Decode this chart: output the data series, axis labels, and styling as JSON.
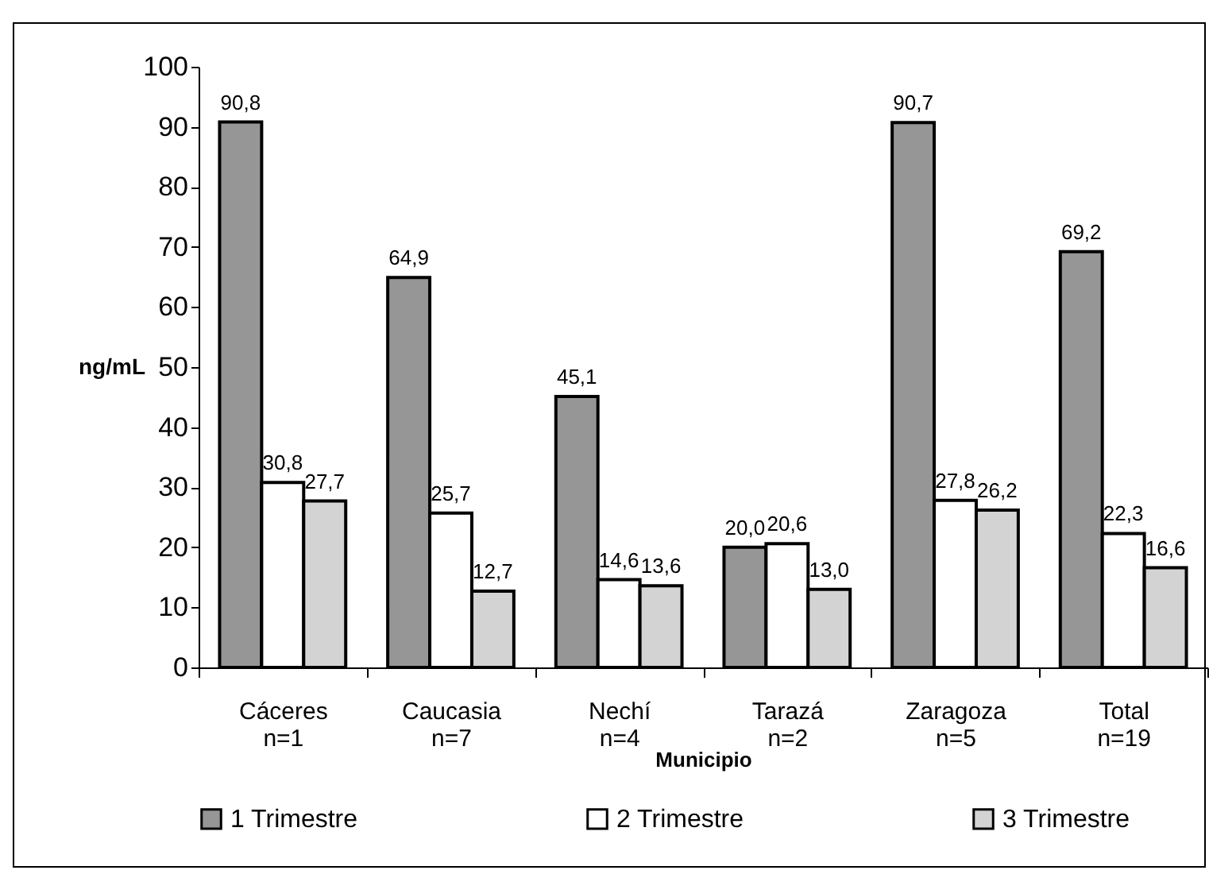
{
  "chart_data": {
    "type": "bar",
    "xlabel": "Municipio",
    "ylabel": "ng/mL",
    "categories": [
      "Cáceres\nn=1",
      "Caucasia\nn=7",
      "Nechí\nn=4",
      "Tarazá\nn=2",
      "Zaragoza\nn=5",
      "Total\nn=19"
    ],
    "series": [
      {
        "name": "1 Trimestre",
        "color": "#969696",
        "values": [
          90.8,
          64.9,
          45.1,
          20.0,
          90.7,
          69.2
        ],
        "value_labels": [
          "90,8",
          "64,9",
          "45,1",
          "20,0",
          "90,7",
          "69,2"
        ]
      },
      {
        "name": "2 Trimestre",
        "color": "#ffffff",
        "values": [
          30.8,
          25.7,
          14.6,
          20.6,
          27.8,
          22.3
        ],
        "value_labels": [
          "30,8",
          "25,7",
          "14,6",
          "20,6",
          "27,8",
          "22,3"
        ]
      },
      {
        "name": "3 Trimestre",
        "color": "#d3d3d3",
        "values": [
          27.7,
          12.7,
          13.6,
          13.0,
          26.2,
          16.6
        ],
        "value_labels": [
          "27,7",
          "12,7",
          "13,6",
          "13,0",
          "26,2",
          "16,6"
        ]
      }
    ],
    "ylim": [
      0,
      100
    ],
    "yticks": [
      0,
      10,
      20,
      30,
      40,
      50,
      60,
      70,
      80,
      90,
      100
    ],
    "grid": false,
    "legend": "bottom"
  }
}
